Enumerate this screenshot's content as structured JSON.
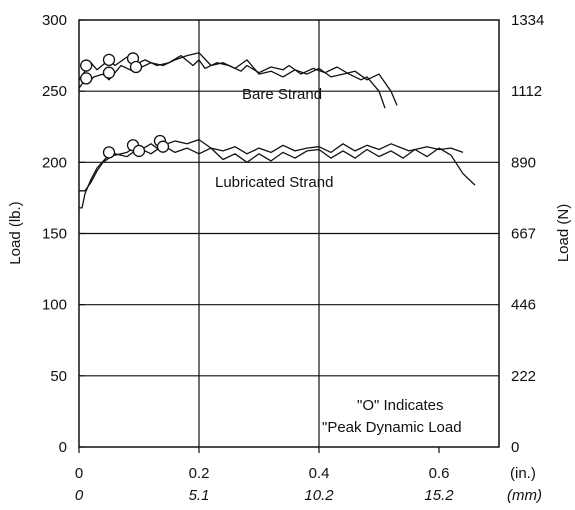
{
  "chart_data": {
    "type": "line",
    "title": "",
    "ylabel_left": "Load (lb.)",
    "ylabel_right": "Load (N)",
    "x_unit_in": "(in.)",
    "x_unit_mm": "(mm)",
    "xlim": [
      0,
      0.7
    ],
    "ylim": [
      0,
      300
    ],
    "x_ticks_in": [
      "0",
      "0.2",
      "0.4",
      "0.6"
    ],
    "x_ticks_mm": [
      "0",
      "5.1",
      "10.2",
      "15.2"
    ],
    "x_tick_values": [
      0,
      0.2,
      0.4,
      0.6
    ],
    "y_ticks_left": [
      "0",
      "50",
      "100",
      "150",
      "200",
      "250",
      "300"
    ],
    "y_ticks_right": [
      "0",
      "222",
      "446",
      "667",
      "890",
      "1112",
      "1334"
    ],
    "y_tick_values": [
      0,
      50,
      100,
      150,
      200,
      250,
      300
    ],
    "grid": "horizontal at each y tick; vertical at x = 0.2 and 0.4",
    "annotations": {
      "bare_strand": "Bare Strand",
      "lubricated_strand": "Lubricated Strand",
      "note_line1": "\"O\" Indicates",
      "note_line2": "\"Peak Dynamic Load"
    },
    "series": [
      {
        "group": "bare",
        "x": [
          0.0,
          0.01,
          0.015,
          0.02,
          0.03,
          0.05,
          0.06,
          0.08,
          0.1,
          0.11,
          0.13,
          0.15,
          0.17,
          0.19,
          0.2,
          0.21,
          0.23,
          0.25,
          0.27,
          0.28,
          0.3,
          0.32,
          0.34,
          0.35,
          0.37,
          0.39,
          0.41,
          0.43,
          0.45,
          0.47,
          0.48,
          0.5,
          0.51
        ],
        "y": [
          258,
          264,
          268,
          270,
          265,
          272,
          268,
          274,
          270,
          272,
          268,
          270,
          275,
          268,
          272,
          266,
          270,
          268,
          264,
          268,
          263,
          267,
          265,
          268,
          262,
          266,
          263,
          267,
          262,
          258,
          260,
          250,
          238
        ]
      },
      {
        "group": "bare",
        "x": [
          0.0,
          0.01,
          0.015,
          0.025,
          0.04,
          0.05,
          0.06,
          0.07,
          0.09,
          0.1,
          0.12,
          0.14,
          0.16,
          0.18,
          0.2,
          0.22,
          0.24,
          0.26,
          0.28,
          0.3,
          0.32,
          0.34,
          0.36,
          0.38,
          0.4,
          0.42,
          0.44,
          0.46,
          0.48,
          0.5,
          0.52,
          0.53
        ],
        "y": [
          252,
          258,
          256,
          260,
          262,
          258,
          263,
          268,
          264,
          266,
          270,
          268,
          272,
          275,
          277,
          268,
          270,
          266,
          272,
          262,
          264,
          260,
          265,
          262,
          266,
          260,
          262,
          264,
          258,
          262,
          250,
          240
        ]
      },
      {
        "group": "lubricated",
        "x": [
          0.0,
          0.005,
          0.01,
          0.02,
          0.03,
          0.045,
          0.05,
          0.06,
          0.08,
          0.09,
          0.1,
          0.12,
          0.13,
          0.14,
          0.16,
          0.18,
          0.2,
          0.22,
          0.24,
          0.26,
          0.28,
          0.3,
          0.32,
          0.34,
          0.36,
          0.38,
          0.4,
          0.42,
          0.44,
          0.46,
          0.48,
          0.5,
          0.52,
          0.55,
          0.58,
          0.6,
          0.62,
          0.64
        ],
        "y": [
          168,
          168,
          178,
          188,
          196,
          203,
          206,
          205,
          207,
          210,
          208,
          213,
          210,
          212,
          215,
          213,
          216,
          210,
          208,
          211,
          206,
          210,
          207,
          212,
          208,
          210,
          211,
          207,
          213,
          208,
          212,
          209,
          213,
          208,
          211,
          209,
          210,
          207
        ]
      },
      {
        "group": "lubricated",
        "x": [
          0.0,
          0.01,
          0.02,
          0.03,
          0.04,
          0.06,
          0.08,
          0.1,
          0.12,
          0.14,
          0.16,
          0.18,
          0.2,
          0.22,
          0.24,
          0.26,
          0.28,
          0.3,
          0.32,
          0.34,
          0.36,
          0.38,
          0.4,
          0.42,
          0.44,
          0.46,
          0.48,
          0.5,
          0.52,
          0.54,
          0.56,
          0.58,
          0.6,
          0.62,
          0.64,
          0.66
        ],
        "y": [
          180,
          180,
          186,
          194,
          200,
          206,
          204,
          210,
          206,
          212,
          207,
          210,
          206,
          210,
          202,
          206,
          200,
          206,
          201,
          207,
          203,
          208,
          209,
          203,
          208,
          203,
          209,
          204,
          208,
          203,
          209,
          204,
          210,
          205,
          192,
          184
        ]
      }
    ],
    "peak_markers": [
      {
        "x": 0.012,
        "y": 268
      },
      {
        "x": 0.012,
        "y": 259
      },
      {
        "x": 0.05,
        "y": 272
      },
      {
        "x": 0.05,
        "y": 263
      },
      {
        "x": 0.09,
        "y": 273
      },
      {
        "x": 0.095,
        "y": 267
      },
      {
        "x": 0.05,
        "y": 207
      },
      {
        "x": 0.09,
        "y": 212
      },
      {
        "x": 0.1,
        "y": 208
      },
      {
        "x": 0.135,
        "y": 215
      },
      {
        "x": 0.14,
        "y": 211
      }
    ]
  }
}
